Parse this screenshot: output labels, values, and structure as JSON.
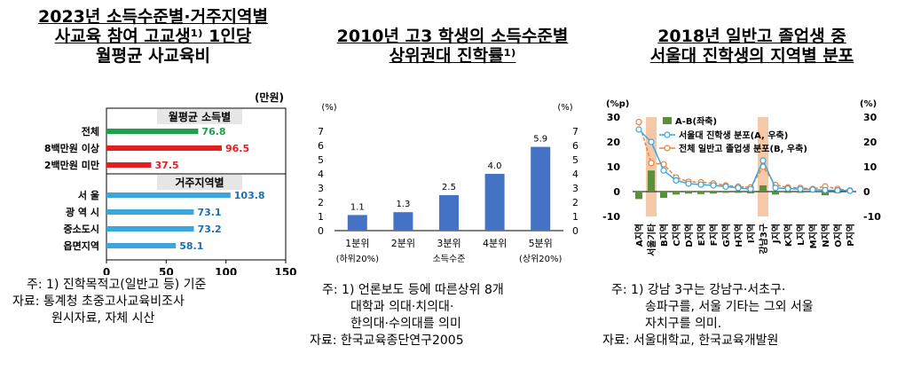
{
  "panels": [
    {
      "title_lines": [
        "2023년 소득수준별·거주지역별",
        "사교육 참여 고교생¹⁾ 1인당",
        "월평균 사교육비"
      ],
      "unit": "(만원)",
      "notes": [
        "주: 1) 진학목적고(일반고 등) 기준",
        "자료: 통계청 초중고사교육비조사",
        "원시자료, 자체 시산"
      ]
    },
    {
      "title_lines": [
        "2010년 고3 학생의 소득수준별",
        "상위권대 진학률¹⁾"
      ],
      "unit_left": "(%)",
      "unit_right": "(%)",
      "notes": [
        "주: 1) 언론보도 등에 따른상위 8개",
        "대학과 의대·치의대·",
        "한의대·수의대를 의미",
        "자료: 한국교육종단연구2005"
      ]
    },
    {
      "title_lines": [
        "2018년 일반고 졸업생 중",
        "서울대 진학생의 지역별 분포"
      ],
      "unit_left": "(%p)",
      "unit_right": "(%)",
      "notes": [
        "주: 1) 강남 3구는 강남구·서초구·",
        "송파구를, 서울 기타는 그외 서울",
        "자치구를 의미.",
        "자료: 서울대학교, 한국교육개발원"
      ]
    }
  ],
  "chart_data": [
    {
      "type": "bar",
      "orientation": "horizontal",
      "title": "2023년 소득수준별·거주지역별 사교육 참여 고교생 1인당 월평균 사교육비",
      "groups": [
        {
          "label": "월평균 소득별",
          "categories": [
            "전체",
            "8백만원 이상",
            "2백만원 미만"
          ],
          "values": [
            76.8,
            96.5,
            37.5
          ],
          "colors": [
            "#1e9f4a",
            "#e02020",
            "#e02020"
          ]
        },
        {
          "label": "거주지역별",
          "categories": [
            "서 울",
            "광 역 시",
            "중소도시",
            "읍면지역"
          ],
          "values": [
            103.8,
            73.1,
            73.2,
            58.1
          ],
          "colors": [
            "#3aa6dc",
            "#3aa6dc",
            "#3aa6dc",
            "#3aa6dc"
          ]
        }
      ],
      "value_label_colors": [
        "#1e9f4a",
        "#e02020",
        "#e02020",
        "#1a6fb0",
        "#1a6fb0",
        "#1a6fb0",
        "#1a6fb0"
      ],
      "xlim": [
        0,
        150
      ],
      "xticks": [
        0,
        50,
        100,
        150
      ],
      "ylabel": "(만원)"
    },
    {
      "type": "bar",
      "title": "2010년 고3 학생의 소득수준별 상위권대 진학률",
      "categories": [
        "1분위",
        "2분위",
        "3분위",
        "4분위",
        "5분위"
      ],
      "category_sublabels": [
        "(하위20%)",
        "",
        "소득수준",
        "",
        "(상위20%)"
      ],
      "values": [
        1.1,
        1.3,
        2.5,
        4.0,
        5.9
      ],
      "value_labels": [
        "1.1",
        "1.3",
        "2.5",
        "4.0",
        "5.9"
      ],
      "ylim": [
        0,
        7
      ],
      "yticks": [
        0,
        1,
        2,
        3,
        4,
        5,
        6,
        7
      ],
      "bar_color": "#4472c4"
    },
    {
      "type": "bar+line",
      "title": "2018년 일반고 졸업생 중 서울대 진학생의 지역별 분포",
      "categories": [
        "A지역",
        "서울기타",
        "B지역",
        "C지역",
        "D지역",
        "E지역",
        "F지역",
        "G지역",
        "H지역",
        "I지역",
        "강남3구",
        "J지역",
        "K지역",
        "L지역",
        "M지역",
        "N지역",
        "O지역",
        "P지역"
      ],
      "highlight_categories": [
        "서울기타",
        "강남3구"
      ],
      "highlight_color": "#f5c8a8",
      "ylim_left": [
        -10,
        30
      ],
      "ylim_right": [
        -10,
        30
      ],
      "yticks": [
        -10,
        0,
        10,
        20,
        30
      ],
      "series": [
        {
          "name": "A-B(좌축)",
          "type": "bar",
          "axis": "left",
          "color": "#5b8f3a",
          "values": [
            -3,
            8.5,
            -2.5,
            -1.2,
            -0.8,
            -1.0,
            -0.8,
            -0.5,
            -0.5,
            -0.7,
            2.5,
            -1.2,
            -0.5,
            -0.5,
            -0.3,
            -1.5,
            -0.6,
            -0.2
          ]
        },
        {
          "name": "서울대 진학생 분포(A, 우축)",
          "type": "line",
          "axis": "right",
          "color": "#3aa6dc",
          "values": [
            25,
            20,
            8.5,
            4.5,
            3.2,
            2.8,
            2.5,
            2.0,
            1.5,
            1.0,
            12.5,
            1.5,
            1.2,
            1.0,
            0.8,
            0.6,
            0.5,
            0.3
          ]
        },
        {
          "name": "전체 일반고 졸업생 분포(B, 우축)",
          "type": "line",
          "axis": "right",
          "color": "#e8823a",
          "values": [
            28,
            11.5,
            11,
            5.7,
            4,
            3.8,
            3.3,
            2.5,
            2,
            1.7,
            10,
            2.7,
            1.7,
            1.5,
            1.1,
            2.1,
            1.1,
            0.5
          ]
        }
      ]
    }
  ]
}
